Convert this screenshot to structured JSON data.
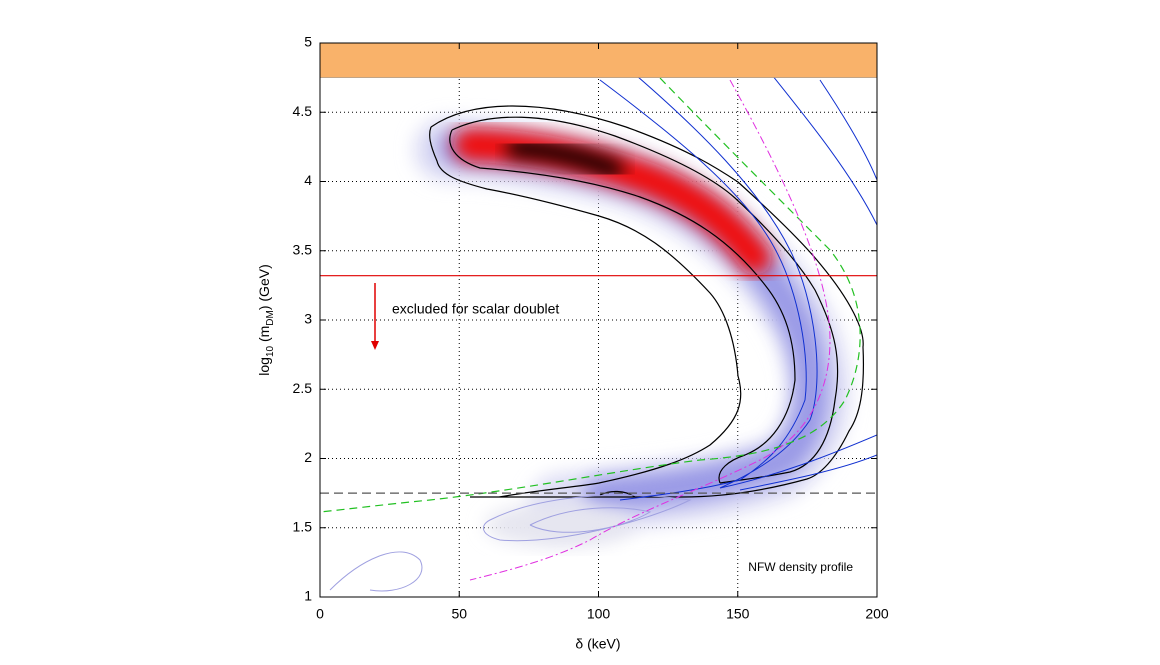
{
  "chart_data": {
    "type": "contour",
    "x_label": "δ (keV)",
    "y_label": [
      "log",
      "10",
      " (m",
      "DM",
      ") (GeV)"
    ],
    "xlim": [
      0,
      200
    ],
    "xticks": [
      0,
      50,
      100,
      150,
      200
    ],
    "ylim": [
      1,
      5
    ],
    "yticks": [
      1,
      1.5,
      2,
      2.5,
      3,
      3.5,
      4,
      4.5,
      5
    ],
    "grid": true,
    "band": {
      "y": [
        4.75,
        5
      ],
      "color": "#f9b26a"
    },
    "hlines": [
      {
        "y": 3.32,
        "color": "#e00000",
        "dashed": false
      },
      {
        "y": 1.75,
        "color": "#555555",
        "dashed": true
      }
    ],
    "annotations": [
      "excluded for scalar doublet",
      "NFW density profile"
    ]
  }
}
